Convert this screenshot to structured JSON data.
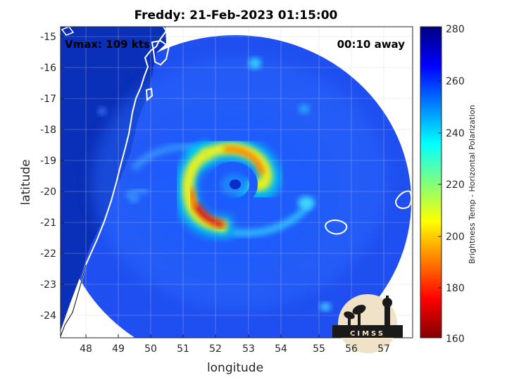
{
  "title": "Freddy: 21-Feb-2023 01:15:00",
  "vmax_label": "Vmax: 109 kts",
  "away_label": "00:10 away",
  "xlabel": "longitude",
  "ylabel": "latitude",
  "colorbar_label": "Brightness Temp - Horizontal Polarization",
  "logo_text": "CIMSS",
  "x_ticks": [
    "48",
    "49",
    "50",
    "51",
    "52",
    "53",
    "54",
    "55",
    "56",
    "57"
  ],
  "y_ticks": [
    "-15",
    "-16",
    "-17",
    "-18",
    "-19",
    "-20",
    "-21",
    "-22",
    "-23",
    "-24"
  ],
  "colorbar_ticks": [
    "280",
    "260",
    "240",
    "220",
    "200",
    "180",
    "160"
  ],
  "chart_data": {
    "type": "heatmap",
    "title": "Freddy: 21-Feb-2023 01:15:00",
    "xlabel": "longitude",
    "ylabel": "latitude",
    "xlim": [
      47.2,
      57.8
    ],
    "ylim": [
      -24.7,
      -14.8
    ],
    "clim": [
      160,
      280
    ],
    "colormap": "jet",
    "annotations": [
      "Vmax: 109 kts",
      "00:10 away"
    ]
  }
}
